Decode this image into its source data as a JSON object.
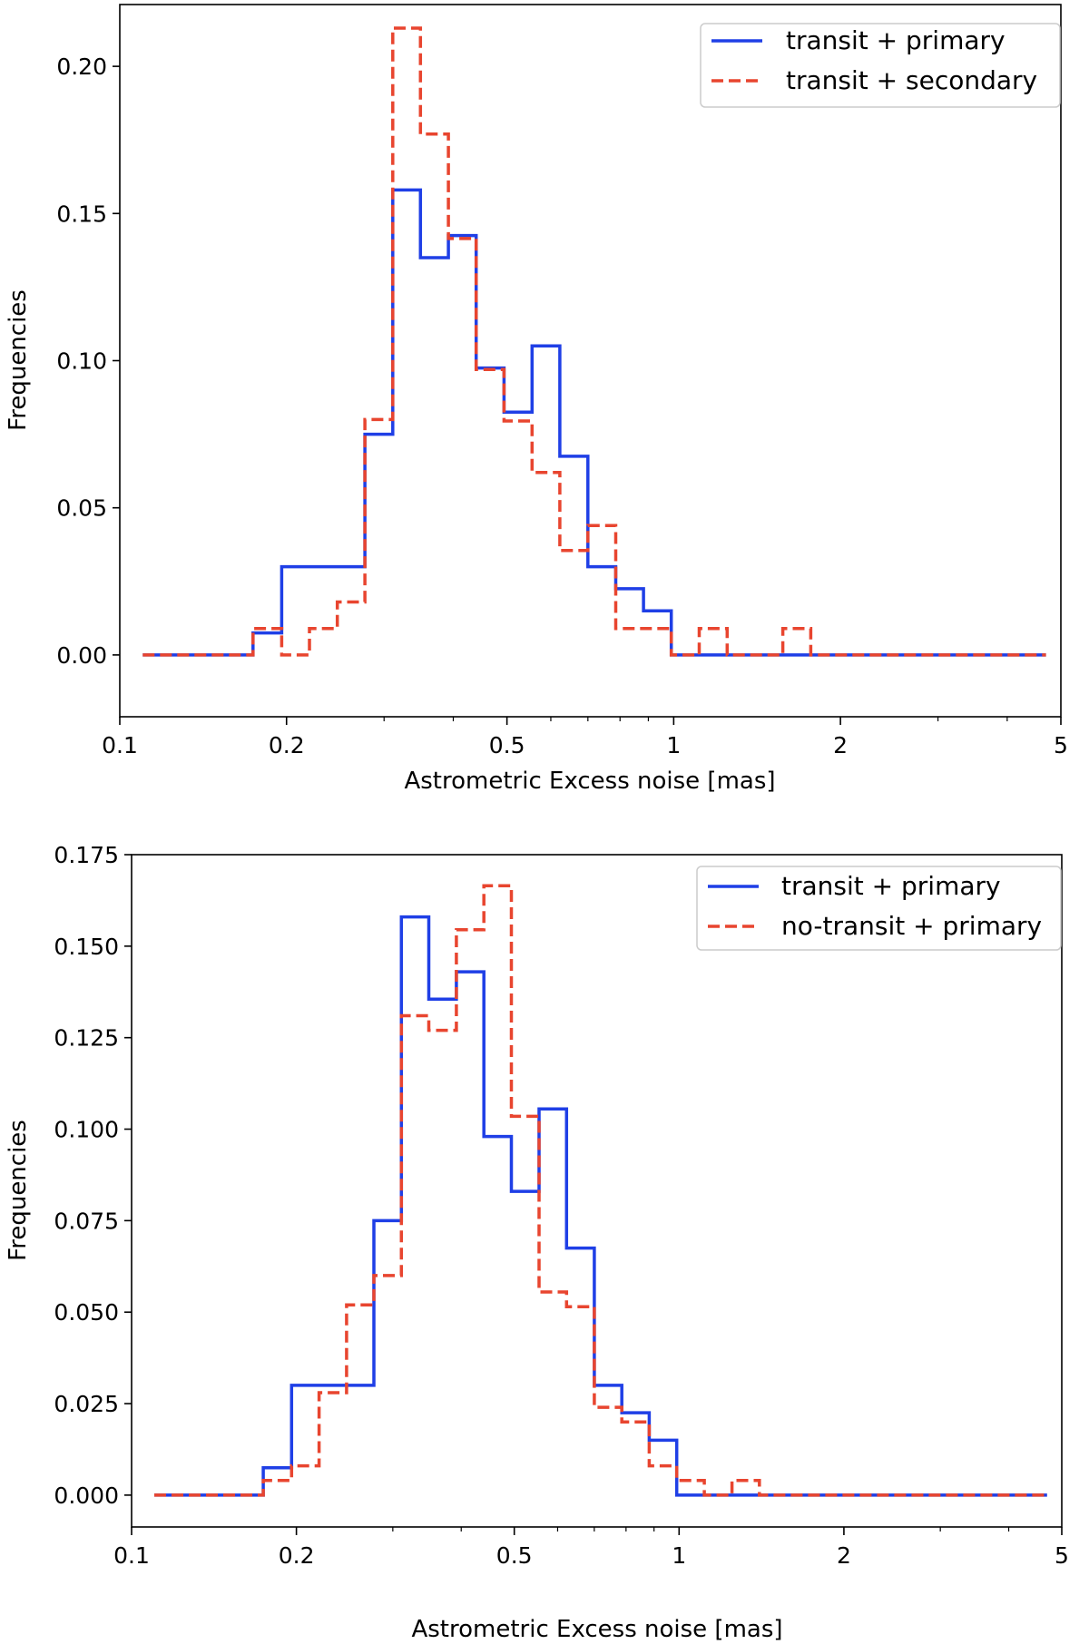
{
  "colors": {
    "primary_line": "#1f3fe6",
    "secondary_line": "#e8452f",
    "axes": "#000000"
  },
  "chart_data": [
    {
      "type": "line",
      "step": true,
      "title": "",
      "xlabel": "Astrometric Excess noise [mas]",
      "ylabel": "Frequencies",
      "xscale": "log",
      "xlim": [
        0.1,
        5
      ],
      "ylim": [
        -0.021,
        0.221
      ],
      "xticks": [
        0.1,
        0.2,
        0.5,
        1,
        2,
        5
      ],
      "xtick_labels": [
        "0.1",
        "0.2",
        "0.5",
        "1",
        "2",
        "5"
      ],
      "yticks": [
        0.0,
        0.05,
        0.1,
        0.15,
        0.2
      ],
      "ytick_labels": [
        "0.00",
        "0.05",
        "0.10",
        "0.15",
        "0.20"
      ],
      "legend_position": "top-right",
      "edges": [
        0.11,
        0.139,
        0.174,
        0.196,
        0.22,
        0.247,
        0.277,
        0.311,
        0.349,
        0.392,
        0.44,
        0.494,
        0.555,
        0.623,
        0.7,
        0.786,
        0.882,
        0.99,
        1.112,
        1.249,
        1.402,
        1.574,
        1.768,
        1.985,
        2.229,
        2.503,
        2.81,
        3.155,
        3.543,
        3.978,
        4.7
      ],
      "series": [
        {
          "name": "transit + primary",
          "style": "solid",
          "values": [
            0,
            0,
            0.0075,
            0.03,
            0.03,
            0.03,
            0.075,
            0.158,
            0.135,
            0.1425,
            0.0975,
            0.0825,
            0.105,
            0.0675,
            0.03,
            0.0225,
            0.015,
            0,
            0,
            0,
            0,
            0,
            0,
            0,
            0,
            0,
            0,
            0,
            0,
            0
          ]
        },
        {
          "name": "transit + secondary",
          "style": "dashed",
          "values": [
            0,
            0,
            0.009,
            0,
            0.009,
            0.018,
            0.08,
            0.213,
            0.177,
            0.1415,
            0.097,
            0.0795,
            0.062,
            0.0355,
            0.044,
            0.009,
            0.009,
            0,
            0.009,
            0,
            0,
            0.009,
            0,
            0,
            0,
            0,
            0,
            0,
            0,
            0
          ]
        }
      ]
    },
    {
      "type": "line",
      "step": true,
      "title": "",
      "xlabel": "Astrometric Excess noise [mas]",
      "ylabel": "Frequencies",
      "xscale": "log",
      "xlim": [
        0.1,
        5
      ],
      "ylim": [
        -0.0087,
        0.175
      ],
      "xticks": [
        0.1,
        0.2,
        0.5,
        1,
        2,
        5
      ],
      "xtick_labels": [
        "0.1",
        "0.2",
        "0.5",
        "1",
        "2",
        "5"
      ],
      "yticks": [
        0.0,
        0.025,
        0.05,
        0.075,
        0.1,
        0.125,
        0.15,
        0.175
      ],
      "ytick_labels": [
        "0.000",
        "0.025",
        "0.050",
        "0.075",
        "0.100",
        "0.125",
        "0.150",
        "0.175"
      ],
      "legend_position": "top-right",
      "edges": [
        0.11,
        0.139,
        0.174,
        0.196,
        0.22,
        0.247,
        0.277,
        0.311,
        0.349,
        0.392,
        0.44,
        0.494,
        0.555,
        0.623,
        0.7,
        0.786,
        0.882,
        0.99,
        1.112,
        1.249,
        1.402,
        1.574,
        1.768,
        1.985,
        2.229,
        2.503,
        2.81,
        3.155,
        3.543,
        3.978,
        4.7
      ],
      "series": [
        {
          "name": "transit + primary",
          "style": "solid",
          "values": [
            0,
            0,
            0.0075,
            0.03,
            0.03,
            0.03,
            0.075,
            0.158,
            0.1355,
            0.143,
            0.098,
            0.083,
            0.1055,
            0.0675,
            0.03,
            0.0225,
            0.015,
            0,
            0,
            0,
            0,
            0,
            0,
            0,
            0,
            0,
            0,
            0,
            0,
            0
          ]
        },
        {
          "name": "no-transit + primary",
          "style": "dashed",
          "values": [
            0,
            0,
            0.004,
            0.008,
            0.028,
            0.052,
            0.06,
            0.131,
            0.127,
            0.1545,
            0.1665,
            0.1035,
            0.0555,
            0.0515,
            0.024,
            0.02,
            0.008,
            0.004,
            0,
            0.004,
            0,
            0,
            0,
            0,
            0,
            0,
            0,
            0,
            0,
            0
          ]
        }
      ]
    }
  ]
}
